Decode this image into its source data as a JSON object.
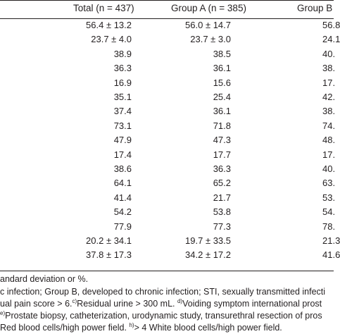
{
  "table": {
    "headers": {
      "total": "Total (n = 437)",
      "group_a": "Group A (n = 385)",
      "group_b": "Group B"
    },
    "rows": [
      {
        "total": "56.4 ± 13.2",
        "group_a": "56.0 ± 14.7",
        "group_b": "56.8"
      },
      {
        "total": "23.7 ± 4.0",
        "group_a": "23.7 ± 3.0",
        "group_b": "24.1"
      },
      {
        "total": "38.9",
        "group_a": "38.5",
        "group_b": "40."
      },
      {
        "total": "36.3",
        "group_a": "36.1",
        "group_b": "38."
      },
      {
        "total": "16.9",
        "group_a": "15.6",
        "group_b": "17."
      },
      {
        "total": "35.1",
        "group_a": "25.4",
        "group_b": "42."
      },
      {
        "total": "37.4",
        "group_a": "36.1",
        "group_b": "38."
      },
      {
        "total": "73.1",
        "group_a": "71.8",
        "group_b": "74."
      },
      {
        "total": "47.9",
        "group_a": "47.3",
        "group_b": "48."
      },
      {
        "total": "17.4",
        "group_a": "17.7",
        "group_b": "17."
      },
      {
        "total": "38.6",
        "group_a": "36.3",
        "group_b": "40."
      },
      {
        "total": "64.1",
        "group_a": "65.2",
        "group_b": "63."
      },
      {
        "total": "41.4",
        "group_a": "21.7",
        "group_b": "53."
      },
      {
        "total": "54.2",
        "group_a": "53.8",
        "group_b": "54."
      },
      {
        "total": "77.9",
        "group_a": "77.3",
        "group_b": "78."
      },
      {
        "total": "20.2 ± 34.1",
        "group_a": "19.7 ± 33.5",
        "group_b": "21.3"
      },
      {
        "total": "37.8 ± 17.3",
        "group_a": "34.2 ± 17.2",
        "group_b": "41.6"
      }
    ]
  },
  "footnotes": {
    "line1": "andard deviation or %.",
    "line2": "c infection; Group B, developed to chronic infection; STI, sexually transmitted infecti",
    "line3_a": "ual pain score > 6.",
    "line3_sup_c": "c)",
    "line3_b": "Residual urine > 300 mL.",
    "line3_sup_d": "d)",
    "line3_c": "Voiding symptom international prost",
    "line4_sup": "e)",
    "line4": "Prostate biopsy, catheterization, urodynamic study, transurethral resection of pros",
    "line5_a": "Red blood cells/high power field.",
    "line5_sup": "h)",
    "line5_b": "> 4 White blood cells/high power field."
  }
}
